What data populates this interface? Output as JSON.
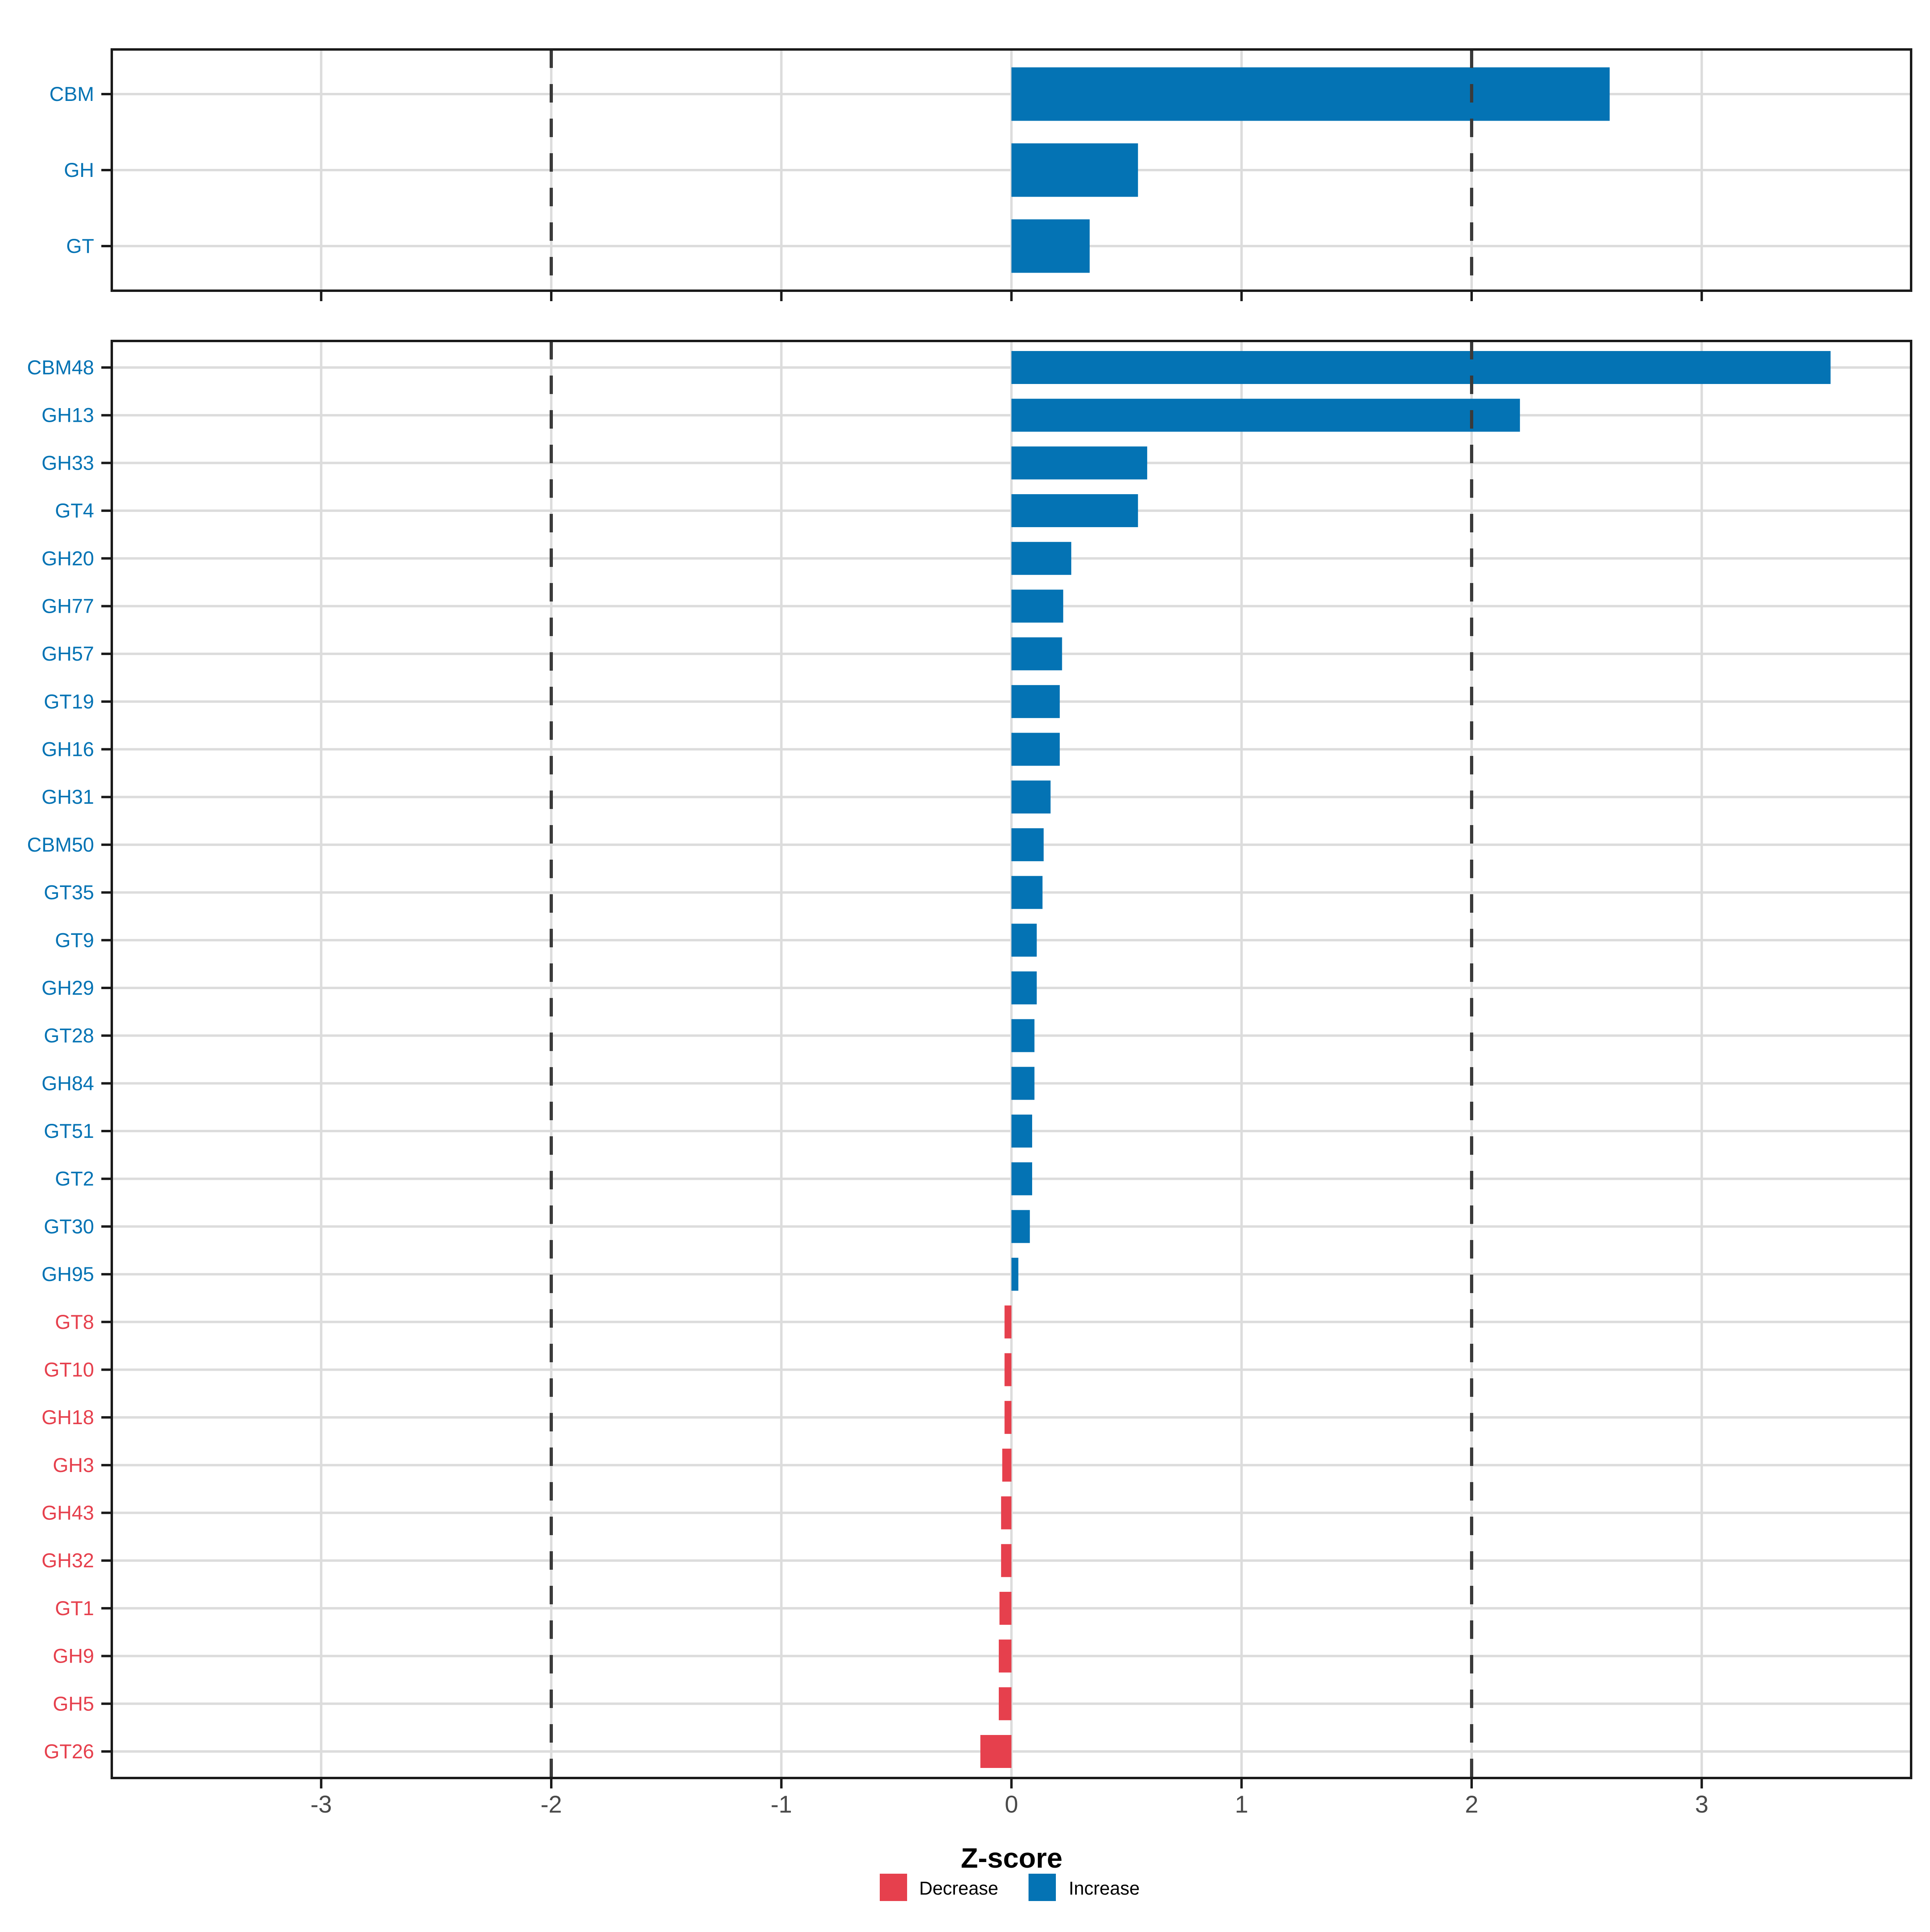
{
  "figure": {
    "background": "#ffffff",
    "description": "Two-panel horizontal bar chart of Z-scores for CAZyme classes (top) and families (bottom)"
  },
  "colors": {
    "increase": "#0473B4",
    "decrease": "#E6404D",
    "grid": "#DCDCDC",
    "dashed_line": "#3A3A3A",
    "panel_border": "#1A1A1A",
    "tick_mark": "#1A1A1A",
    "axis_text": "#4A4A4A",
    "axis_title": "#000000"
  },
  "axis": {
    "label": "Z-score",
    "ticks": [
      -3,
      -2,
      -1,
      0,
      1,
      2,
      3
    ],
    "tick_labels": [
      "-3",
      "-2",
      "-1",
      "0",
      "1",
      "2",
      "3"
    ],
    "dashed_lines": [
      -2,
      2
    ],
    "xlim": [
      -3.91,
      3.91
    ]
  },
  "legend": {
    "items": [
      {
        "label": "Decrease",
        "color_key": "decrease"
      },
      {
        "label": "Increase",
        "color_key": "increase"
      }
    ]
  },
  "chart_data": [
    {
      "type": "bar",
      "panel": "top",
      "orientation": "horizontal",
      "title": "",
      "xlabel": "",
      "ylabel": "",
      "xlim": [
        -3.91,
        3.91
      ],
      "grid": true,
      "categories": [
        "CBM",
        "GH",
        "GT"
      ],
      "values": [
        2.6,
        0.55,
        0.34
      ],
      "directions": [
        "Increase",
        "Increase",
        "Increase"
      ]
    },
    {
      "type": "bar",
      "panel": "bottom",
      "orientation": "horizontal",
      "title": "",
      "xlabel": "Z-score",
      "ylabel": "",
      "xlim": [
        -3.91,
        3.91
      ],
      "grid": true,
      "categories": [
        "CBM48",
        "GH13",
        "GH33",
        "GT4",
        "GH20",
        "GH77",
        "GH57",
        "GT19",
        "GH16",
        "GH31",
        "CBM50",
        "GT35",
        "GT9",
        "GH29",
        "GT28",
        "GH84",
        "GT51",
        "GT2",
        "GT30",
        "GH95",
        "GT8",
        "GT10",
        "GH18",
        "GH3",
        "GH43",
        "GH32",
        "GT1",
        "GH9",
        "GH5",
        "GT26"
      ],
      "values": [
        3.56,
        2.21,
        0.59,
        0.55,
        0.26,
        0.225,
        0.22,
        0.21,
        0.21,
        0.17,
        0.14,
        0.135,
        0.11,
        0.11,
        0.1,
        0.1,
        0.09,
        0.09,
        0.08,
        0.03,
        -0.03,
        -0.03,
        -0.03,
        -0.04,
        -0.045,
        -0.045,
        -0.052,
        -0.055,
        -0.055,
        -0.135
      ],
      "directions": [
        "Increase",
        "Increase",
        "Increase",
        "Increase",
        "Increase",
        "Increase",
        "Increase",
        "Increase",
        "Increase",
        "Increase",
        "Increase",
        "Increase",
        "Increase",
        "Increase",
        "Increase",
        "Increase",
        "Increase",
        "Increase",
        "Increase",
        "Increase",
        "Decrease",
        "Decrease",
        "Decrease",
        "Decrease",
        "Decrease",
        "Decrease",
        "Decrease",
        "Decrease",
        "Decrease",
        "Decrease"
      ]
    }
  ]
}
